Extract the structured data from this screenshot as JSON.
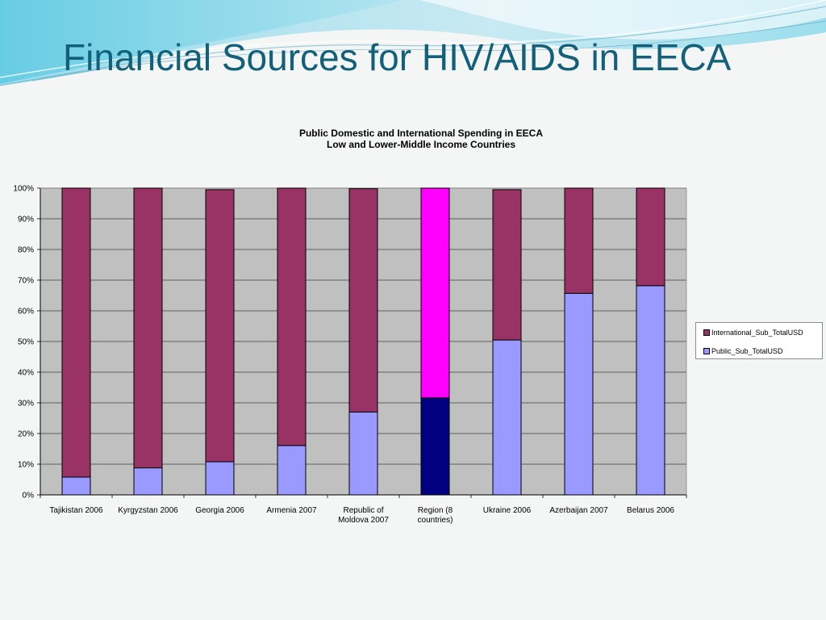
{
  "slide": {
    "title": "Financial Sources for HIV/AIDS in EECA"
  },
  "chart_data": {
    "type": "bar",
    "stacked": "percent",
    "title_lines": [
      "Public Domestic and International Spending in EECA",
      "Low and Lower-Middle Income Countries"
    ],
    "categories": [
      [
        "Tajikistan 2006"
      ],
      [
        "Kyrgyzstan 2006"
      ],
      [
        "Georgia 2006"
      ],
      [
        "Armenia 2007"
      ],
      [
        "Republic of",
        "Moldova 2007"
      ],
      [
        "Region (8",
        "countries)"
      ],
      [
        "Ukraine 2006"
      ],
      [
        "Azerbaijan 2007"
      ],
      [
        "Belarus 2006"
      ]
    ],
    "series": [
      {
        "name": "Public_Sub_TotalUSD",
        "values": [
          5.8,
          8.8,
          10.8,
          16.1,
          27.0,
          31.6,
          50.5,
          65.7,
          68.2
        ],
        "color": "#9999ff",
        "highlight_color": "#000080"
      },
      {
        "name": "International_Sub_TotalUSD",
        "values": [
          94.2,
          91.2,
          88.7,
          83.9,
          72.8,
          68.4,
          49.0,
          34.3,
          31.8
        ],
        "color": "#993366",
        "highlight_color": "#ff00ff"
      }
    ],
    "highlight_index": 5,
    "y_ticks": [
      "0%",
      "10%",
      "20%",
      "30%",
      "40%",
      "50%",
      "60%",
      "70%",
      "80%",
      "90%",
      "100%"
    ],
    "ylim": [
      0,
      100
    ],
    "grid": true,
    "plot_background": "#c0c0c0",
    "legend_position": "right",
    "legend_entries": [
      "International_Sub_TotalUSD",
      "Public_Sub_TotalUSD"
    ]
  },
  "colors": {
    "title": "#12607a",
    "public": "#9999ff",
    "international": "#993366",
    "region_public": "#000080",
    "region_international": "#ff00ff"
  }
}
